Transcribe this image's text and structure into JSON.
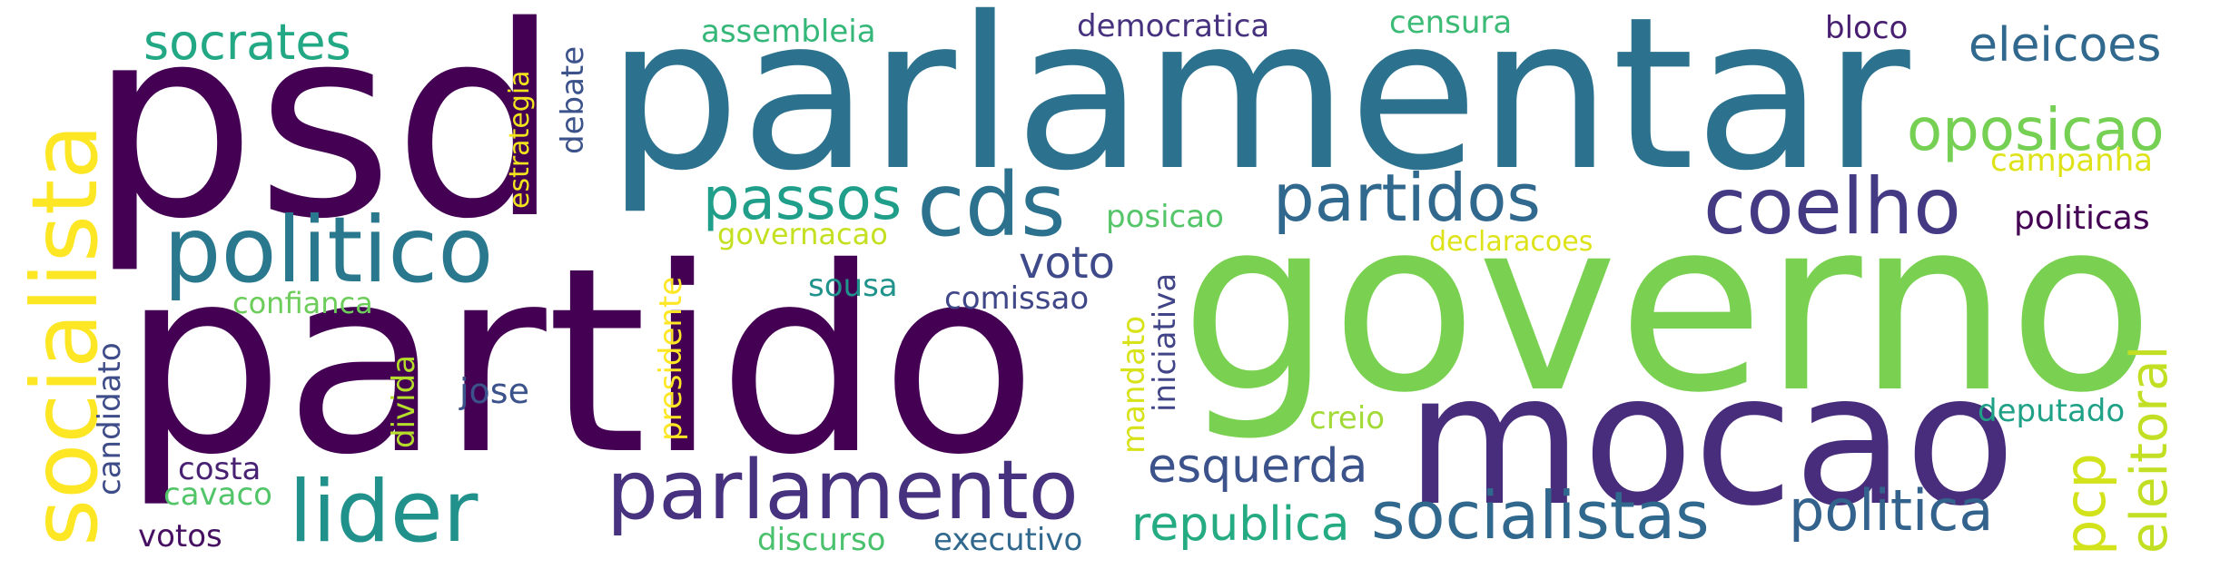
{
  "words": [
    {
      "text": "psd",
      "color": "#440154"
    },
    {
      "text": "parlamentar",
      "color": "#2c728e"
    },
    {
      "text": "partido",
      "color": "#440154"
    },
    {
      "text": "governo",
      "color": "#7ad151"
    },
    {
      "text": "mocao",
      "color": "#472d7b"
    },
    {
      "text": "socialista",
      "color": "#fde725"
    },
    {
      "text": "politico",
      "color": "#2a788e"
    },
    {
      "text": "parlamento",
      "color": "#46327e"
    },
    {
      "text": "lider",
      "color": "#21918c"
    },
    {
      "text": "coelho",
      "color": "#443983"
    },
    {
      "text": "socialistas",
      "color": "#31688e"
    },
    {
      "text": "cds",
      "color": "#2c728e"
    },
    {
      "text": "partidos",
      "color": "#31688e"
    },
    {
      "text": "socrates",
      "color": "#22a884"
    },
    {
      "text": "passos",
      "color": "#1f9e89"
    },
    {
      "text": "oposicao",
      "color": "#75d054"
    },
    {
      "text": "politica",
      "color": "#33638d"
    },
    {
      "text": "eleicoes",
      "color": "#31688e"
    },
    {
      "text": "eleitoral",
      "color": "#c2df23"
    },
    {
      "text": "esquerda",
      "color": "#3b528b"
    },
    {
      "text": "republica",
      "color": "#25ab82"
    },
    {
      "text": "pcp",
      "color": "#d2e21b"
    },
    {
      "text": "voto",
      "color": "#3e4a89"
    },
    {
      "text": "politicas",
      "color": "#440154"
    },
    {
      "text": "confianca",
      "color": "#6ccd5a"
    },
    {
      "text": "deputado",
      "color": "#1fa187"
    },
    {
      "text": "governacao",
      "color": "#c5e021"
    },
    {
      "text": "candidato",
      "color": "#3e4c8a"
    },
    {
      "text": "presidente",
      "color": "#fde725"
    },
    {
      "text": "iniciativa",
      "color": "#414487"
    },
    {
      "text": "mandato",
      "color": "#d8e219"
    },
    {
      "text": "debate",
      "color": "#3b528b"
    },
    {
      "text": "estrategia",
      "color": "#f1e51d"
    },
    {
      "text": "campanha",
      "color": "#dde318"
    },
    {
      "text": "assembleia",
      "color": "#35b779"
    },
    {
      "text": "democratica",
      "color": "#46327e"
    },
    {
      "text": "censura",
      "color": "#3bbb75"
    },
    {
      "text": "bloco",
      "color": "#481f70"
    },
    {
      "text": "posicao",
      "color": "#54c568"
    },
    {
      "text": "declaracoes",
      "color": "#dde318"
    },
    {
      "text": "sousa",
      "color": "#20938c"
    },
    {
      "text": "comissao",
      "color": "#3f4788"
    },
    {
      "text": "jose",
      "color": "#3b528b"
    },
    {
      "text": "divida",
      "color": "#b5de2b"
    },
    {
      "text": "creio",
      "color": "#a2da37"
    },
    {
      "text": "costa",
      "color": "#482173"
    },
    {
      "text": "cavaco",
      "color": "#52c569"
    },
    {
      "text": "votos",
      "color": "#471063"
    },
    {
      "text": "discurso",
      "color": "#4ac16d"
    },
    {
      "text": "executivo",
      "color": "#31688e"
    }
  ]
}
